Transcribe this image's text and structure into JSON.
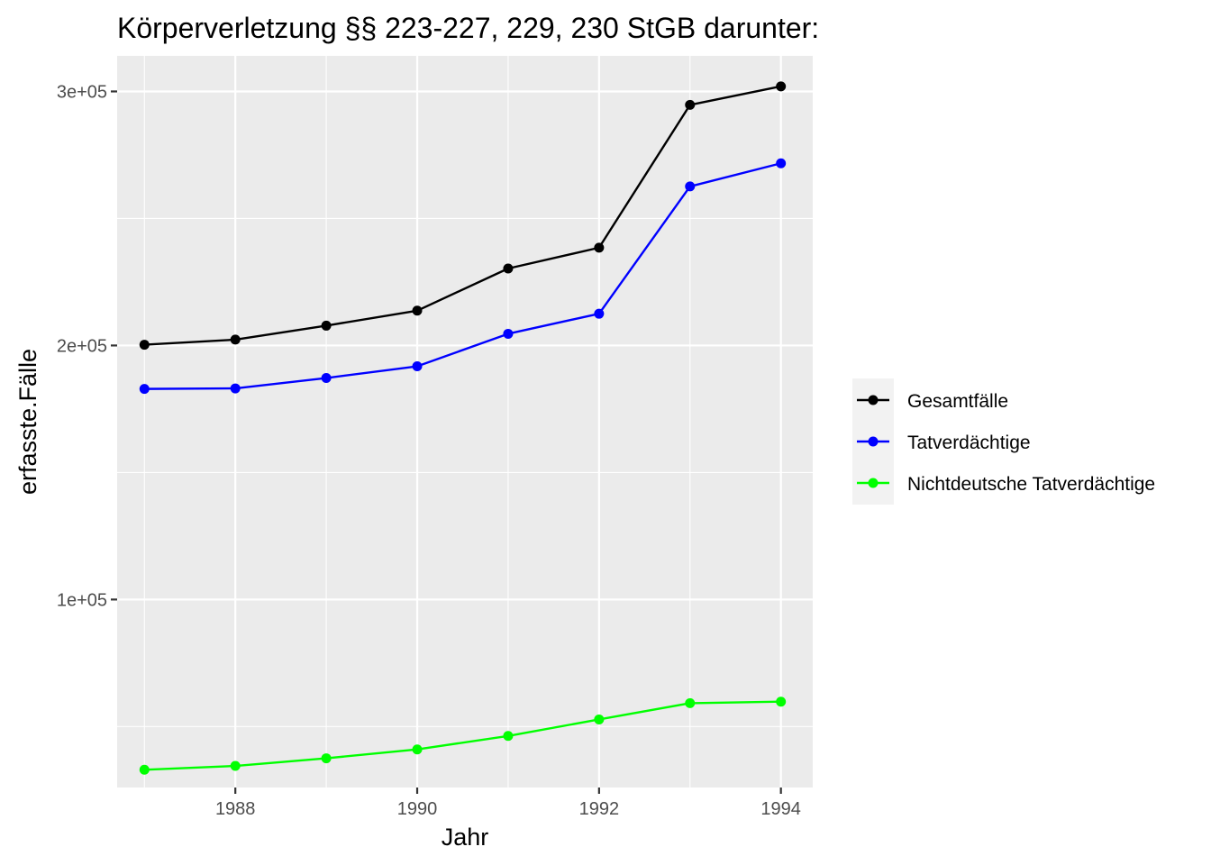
{
  "chart_data": {
    "type": "line",
    "title": "Körperverletzung §§ 223-227, 229, 230 StGB darunter:",
    "xlabel": "Jahr",
    "ylabel": "erfasste.Fälle",
    "x": [
      1987,
      1988,
      1989,
      1990,
      1991,
      1992,
      1993,
      1994
    ],
    "xlim": [
      1986.7,
      1994.35
    ],
    "ylim": [
      26000,
      314000
    ],
    "x_ticks": [
      1988,
      1990,
      1992,
      1994
    ],
    "x_tick_labels": [
      "1988",
      "1990",
      "1992",
      "1994"
    ],
    "y_ticks": [
      100000,
      200000,
      300000
    ],
    "y_tick_labels": [
      "1e+05",
      "2e+05",
      "3e+05"
    ],
    "grid": true,
    "legend_position": "right",
    "series": [
      {
        "name": "Gesamtfälle",
        "color": "#000000",
        "values": [
          200300,
          202300,
          207800,
          213700,
          230300,
          238500,
          294700,
          302000
        ]
      },
      {
        "name": "Tatverdächtige",
        "color": "#0000ff",
        "values": [
          182900,
          183100,
          187200,
          191800,
          204600,
          212500,
          262600,
          271700
        ]
      },
      {
        "name": "Nichtdeutsche Tatverdächtige",
        "color": "#00ff00",
        "values": [
          33000,
          34500,
          37500,
          41000,
          46300,
          52800,
          59200,
          59800
        ]
      }
    ]
  }
}
